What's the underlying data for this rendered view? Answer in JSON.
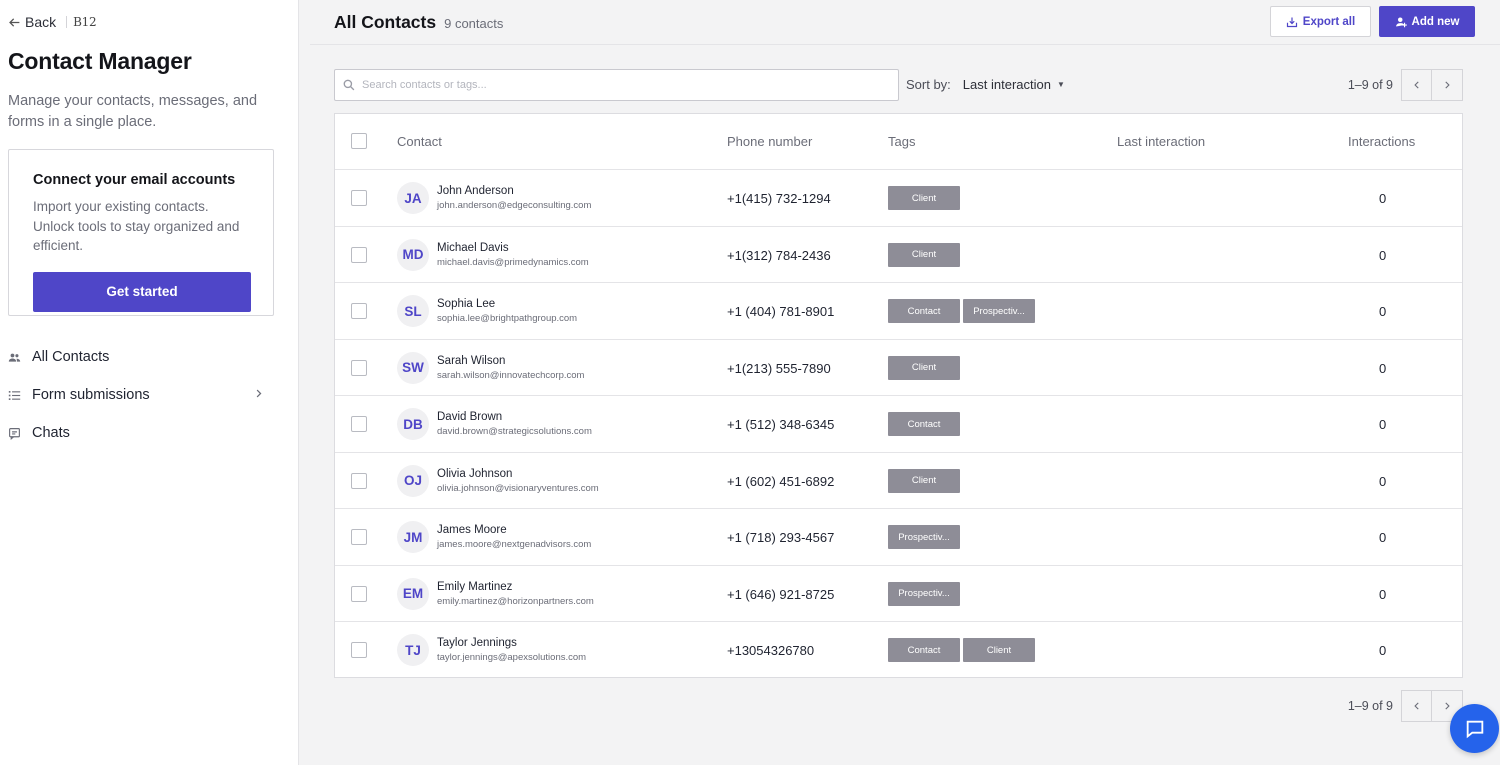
{
  "sidebar": {
    "back_label": "Back",
    "brand": "B12",
    "app_title": "Contact Manager",
    "app_description": "Manage your contacts, messages, and forms in a single place.",
    "promo": {
      "title": "Connect your email accounts",
      "text": "Import your existing contacts. Unlock tools to stay organized and efficient.",
      "button_label": "Get started"
    },
    "nav": [
      {
        "label": "All Contacts",
        "icon": "people-icon"
      },
      {
        "label": "Form submissions",
        "icon": "list-icon"
      },
      {
        "label": "Chats",
        "icon": "chat-icon"
      }
    ]
  },
  "header": {
    "title": "All Contacts",
    "count": "9 contacts",
    "export_label": "Export all",
    "add_label": "Add new"
  },
  "toolbar": {
    "search_placeholder": "Search contacts or tags...",
    "sort_label": "Sort by:",
    "sort_value": "Last interaction",
    "pagination": "1–9 of 9"
  },
  "table": {
    "columns": [
      "Contact",
      "Phone number",
      "Tags",
      "Last interaction",
      "Interactions"
    ],
    "rows": [
      {
        "initials": "JA",
        "name": "John Anderson",
        "email": "john.anderson@edgeconsulting.com",
        "phone": "+1(415) 732-1294",
        "tags": [
          "Client"
        ],
        "last_interaction": "",
        "interactions": "0"
      },
      {
        "initials": "MD",
        "name": "Michael Davis",
        "email": "michael.davis@primedynamics.com",
        "phone": "+1(312) 784-2436",
        "tags": [
          "Client"
        ],
        "last_interaction": "",
        "interactions": "0"
      },
      {
        "initials": "SL",
        "name": "Sophia Lee",
        "email": "sophia.lee@brightpathgroup.com",
        "phone": "+1 (404) 781-8901",
        "tags": [
          "Contact",
          "Prospectiv..."
        ],
        "last_interaction": "",
        "interactions": "0"
      },
      {
        "initials": "SW",
        "name": "Sarah Wilson",
        "email": "sarah.wilson@innovatechcorp.com",
        "phone": "+1(213) 555-7890",
        "tags": [
          "Client"
        ],
        "last_interaction": "",
        "interactions": "0"
      },
      {
        "initials": "DB",
        "name": "David Brown",
        "email": "david.brown@strategicsolutions.com",
        "phone": "+1 (512) 348-6345",
        "tags": [
          "Contact"
        ],
        "last_interaction": "",
        "interactions": "0"
      },
      {
        "initials": "OJ",
        "name": "Olivia Johnson",
        "email": "olivia.johnson@visionaryventures.com",
        "phone": "+1 (602) 451-6892",
        "tags": [
          "Client"
        ],
        "last_interaction": "",
        "interactions": "0"
      },
      {
        "initials": "JM",
        "name": "James Moore",
        "email": "james.moore@nextgenadvisors.com",
        "phone": "+1 (718) 293-4567",
        "tags": [
          "Prospectiv..."
        ],
        "last_interaction": "",
        "interactions": "0"
      },
      {
        "initials": "EM",
        "name": "Emily Martinez",
        "email": "emily.martinez@horizonpartners.com",
        "phone": "+1 (646) 921-8725",
        "tags": [
          "Prospectiv..."
        ],
        "last_interaction": "",
        "interactions": "0"
      },
      {
        "initials": "TJ",
        "name": "Taylor Jennings",
        "email": "taylor.jennings@apexsolutions.com",
        "phone": "+13054326780",
        "tags": [
          "Contact",
          "Client"
        ],
        "last_interaction": "",
        "interactions": "0"
      }
    ]
  },
  "footer": {
    "pagination": "1–9 of 9"
  },
  "colors": {
    "accent": "#4f46c8",
    "tag_bg": "#8e8d97",
    "chat_fab": "#2563eb"
  }
}
